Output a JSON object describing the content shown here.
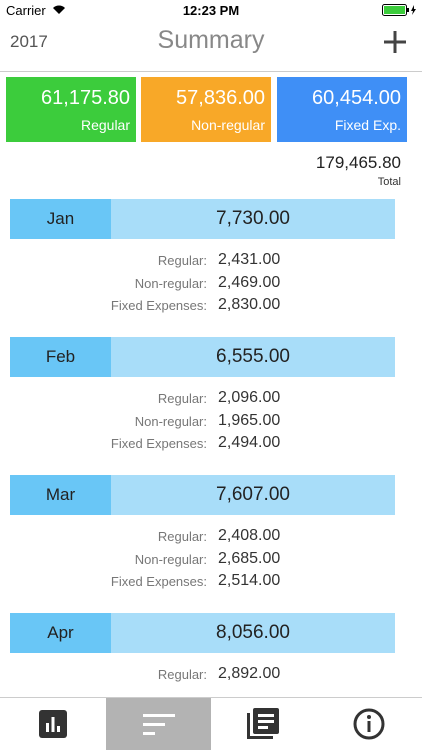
{
  "status_bar": {
    "carrier": "Carrier",
    "time": "12:23 PM"
  },
  "header": {
    "year": "2017",
    "title": "Summary"
  },
  "summary_cards": [
    {
      "value": "61,175.80",
      "label": "Regular",
      "color": "#3ccc3c"
    },
    {
      "value": "57,836.00",
      "label": "Non-regular",
      "color": "#f8a828"
    },
    {
      "value": "60,454.00",
      "label": "Fixed Exp.",
      "color": "#3f8ff6"
    }
  ],
  "total": {
    "value": "179,465.80",
    "label": "Total"
  },
  "months": [
    {
      "name": "Jan",
      "total": "7,730.00",
      "rows": [
        {
          "label": "Regular:",
          "value": "2,431.00"
        },
        {
          "label": "Non-regular:",
          "value": "2,469.00"
        },
        {
          "label": "Fixed Expenses:",
          "value": "2,830.00"
        }
      ]
    },
    {
      "name": "Feb",
      "total": "6,555.00",
      "rows": [
        {
          "label": "Regular:",
          "value": "2,096.00"
        },
        {
          "label": "Non-regular:",
          "value": "1,965.00"
        },
        {
          "label": "Fixed Expenses:",
          "value": "2,494.00"
        }
      ]
    },
    {
      "name": "Mar",
      "total": "7,607.00",
      "rows": [
        {
          "label": "Regular:",
          "value": "2,408.00"
        },
        {
          "label": "Non-regular:",
          "value": "2,685.00"
        },
        {
          "label": "Fixed Expenses:",
          "value": "2,514.00"
        }
      ]
    },
    {
      "name": "Apr",
      "total": "8,056.00",
      "rows": [
        {
          "label": "Regular:",
          "value": "2,892.00"
        }
      ]
    }
  ]
}
